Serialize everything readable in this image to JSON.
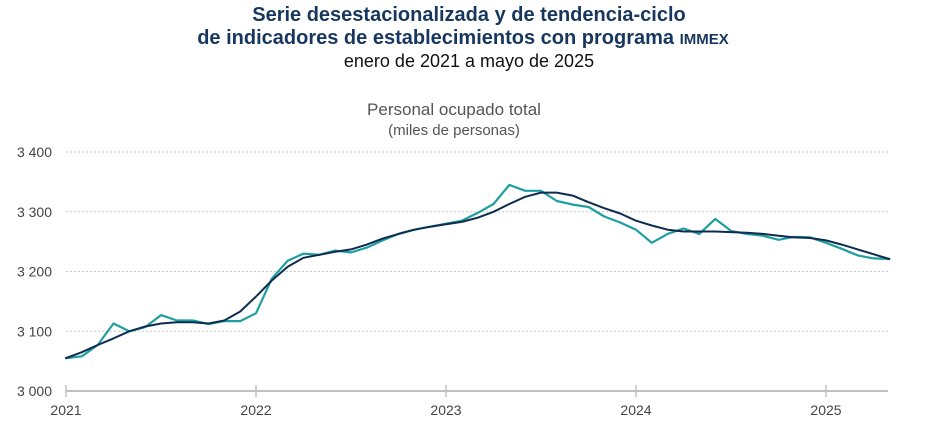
{
  "header": {
    "title_line1": "Serie desestacionalizada y de tendencia-ciclo",
    "title_line2_main": "de indicadores de establecimientos con programa",
    "title_line2_small": "IMMEX",
    "subtitle": "enero de 2021 a mayo de 2025"
  },
  "colors": {
    "title": "#17375E",
    "seasonally_adjusted": "#1E9EA0",
    "trend_cycle": "#0D2C4F",
    "grid": "#c8c8c8",
    "axis": "#c0c0c0"
  },
  "chart_data": {
    "type": "line",
    "title": "Personal ocupado total",
    "subtitle": "(miles de personas)",
    "xlabel": "",
    "ylabel": "",
    "ylim": [
      3000,
      3400
    ],
    "yticks": [
      3000,
      3100,
      3200,
      3300,
      3400
    ],
    "ytick_labels": [
      "3 000",
      "3 100",
      "3 200",
      "3 300",
      "3 400"
    ],
    "xticks": [
      "2021",
      "2022",
      "2023",
      "2024",
      "2025"
    ],
    "grid": true,
    "legend": "none",
    "x_start": "2021-01",
    "x_end": "2025-05",
    "series": [
      {
        "name": "Serie desestacionalizada",
        "values": [
          3055,
          3058,
          3077,
          3113,
          3100,
          3107,
          3127,
          3118,
          3118,
          3112,
          3117,
          3117,
          3130,
          3188,
          3218,
          3230,
          3228,
          3235,
          3232,
          3240,
          3252,
          3263,
          3270,
          3275,
          3280,
          3285,
          3298,
          3313,
          3345,
          3335,
          3335,
          3318,
          3312,
          3308,
          3292,
          3282,
          3270,
          3248,
          3263,
          3272,
          3263,
          3288,
          3268,
          3263,
          3260,
          3253,
          3258,
          3257,
          3248,
          3238,
          3227,
          3222,
          3221
        ]
      },
      {
        "name": "Tendencia-ciclo",
        "values": [
          3055,
          3065,
          3077,
          3088,
          3100,
          3108,
          3113,
          3115,
          3115,
          3113,
          3118,
          3133,
          3158,
          3185,
          3208,
          3223,
          3228,
          3233,
          3237,
          3245,
          3255,
          3263,
          3270,
          3275,
          3279,
          3283,
          3290,
          3300,
          3313,
          3325,
          3332,
          3332,
          3327,
          3316,
          3306,
          3297,
          3285,
          3277,
          3270,
          3267,
          3267,
          3267,
          3266,
          3265,
          3263,
          3260,
          3257,
          3256,
          3252,
          3245,
          3237,
          3229,
          3221
        ]
      }
    ]
  }
}
